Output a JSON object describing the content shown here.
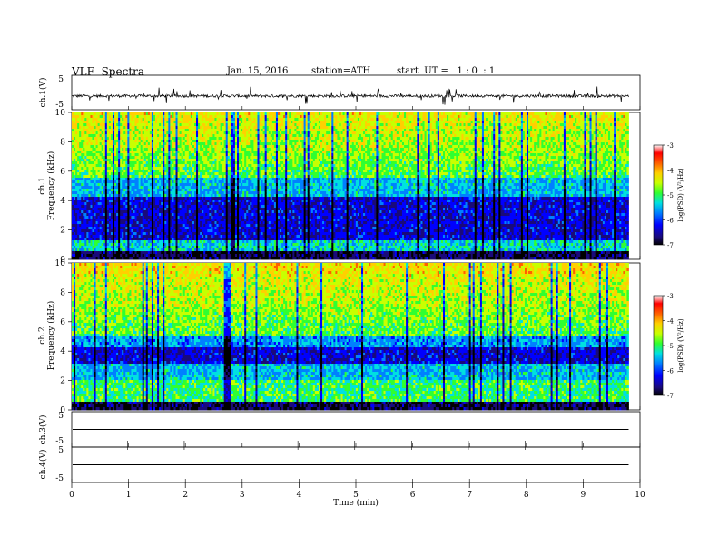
{
  "header": {
    "title": "VLF  Spectra",
    "date": "Jan. 15, 2016",
    "station": "station=ATH",
    "start": "start  UT =   1 : 0  : 1"
  },
  "colors": {
    "spectrogram_scale": [
      "#000000",
      "#1a0a7a",
      "#0000ff",
      "#0080ff",
      "#00e0e0",
      "#30ff30",
      "#c8ff00",
      "#ffd000",
      "#ff6000",
      "#ff0000",
      "#ffffff"
    ]
  },
  "chart_data": [
    {
      "type": "line",
      "panel": "ch1-waveform",
      "ylabel": "ch.1(V)",
      "ytick_labels": [
        "5",
        "-5"
      ],
      "ylim": [
        -5,
        5
      ],
      "description_of_trace": "noisy waveform centred near -1 V with sferic spikes",
      "baseline_value": -1
    },
    {
      "type": "heatmap",
      "panel": "ch1-spectrogram",
      "ylabel_top": "ch.1",
      "ylabel": "Frequency  (kHz)",
      "ytick_labels": [
        "0",
        "2",
        "4",
        "6",
        "8",
        "10"
      ],
      "ylim": [
        0,
        10
      ],
      "colorbar": {
        "label": "log(PSD) (V²/Hz)",
        "tick_labels": [
          "-3",
          "-4",
          "-5",
          "-6",
          "-7"
        ],
        "range": [
          -7,
          -3
        ]
      }
    },
    {
      "type": "heatmap",
      "panel": "ch2-spectrogram",
      "ylabel_top": "ch.2",
      "ylabel": "Frequency  (kHz)",
      "ytick_labels": [
        "0",
        "2",
        "4",
        "6",
        "8",
        "10"
      ],
      "ylim": [
        0,
        10
      ],
      "colorbar": {
        "label": "log(PSD) (V²/Hz)",
        "tick_labels": [
          "-3",
          "-4",
          "-5",
          "-6",
          "-7"
        ],
        "range": [
          -7,
          -3
        ]
      }
    },
    {
      "type": "line",
      "panel": "ch3-waveform",
      "ylabel": "ch.3(V)",
      "ytick_labels": [
        "5",
        "-5"
      ],
      "ylim": [
        -5,
        5
      ],
      "baseline_value": 0
    },
    {
      "type": "line",
      "panel": "ch4-waveform",
      "ylabel": "ch.4(V)",
      "ytick_labels": [
        "5",
        "-5"
      ],
      "ylim": [
        -5,
        5
      ],
      "baseline_value": 0
    }
  ],
  "xaxis": {
    "xlabel": "Time  (min)",
    "tick_labels": [
      "0",
      "1",
      "2",
      "3",
      "4",
      "5",
      "6",
      "7",
      "8",
      "9",
      "10"
    ],
    "xlim": [
      0,
      10
    ],
    "data_end": 9.8
  }
}
